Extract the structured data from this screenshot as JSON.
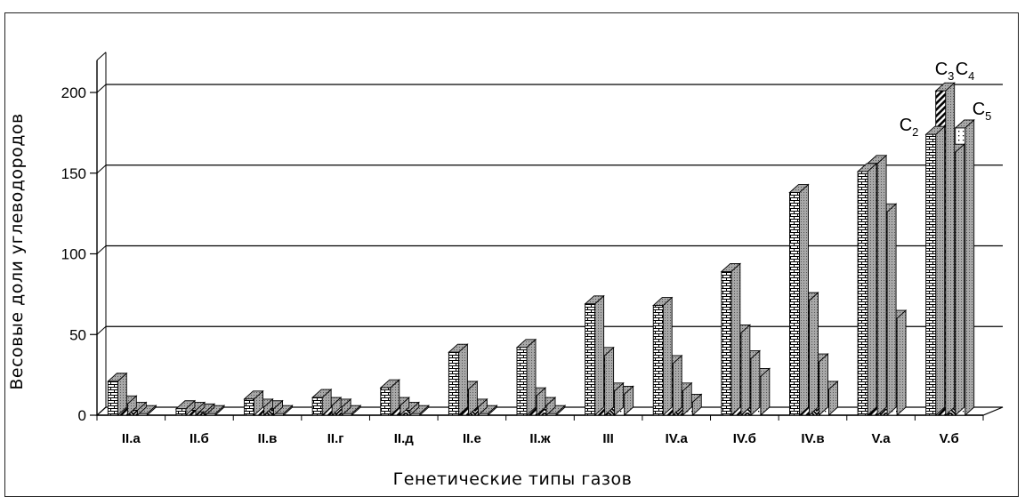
{
  "chart_data": {
    "type": "bar",
    "title": "",
    "xlabel": "Генетические типы газов",
    "ylabel": "Весовые доли углеводородов",
    "ylim": [
      0,
      200
    ],
    "yticks": [
      0,
      50,
      100,
      150,
      200
    ],
    "grid": true,
    "style": "3d-clustered-column",
    "categories": [
      "II.а",
      "II.б",
      "II.в",
      "II.г",
      "II.д",
      "II.е",
      "II.ж",
      "III",
      "IV.а",
      "IV.б",
      "IV.в",
      "V.а",
      "V.б"
    ],
    "series": [
      {
        "name": "C2",
        "label_main": "C",
        "label_sub": "2",
        "pattern": "bricks",
        "values": [
          21,
          4,
          10,
          11,
          17,
          39,
          42,
          69,
          68,
          89,
          138,
          151,
          174
        ]
      },
      {
        "name": "C3",
        "label_main": "C",
        "label_sub": "3",
        "pattern": "diag",
        "values": [
          7,
          3,
          5,
          6,
          6,
          16,
          12,
          37,
          32,
          51,
          71,
          156,
          201
        ]
      },
      {
        "name": "C4",
        "label_main": "C",
        "label_sub": "4",
        "pattern": "zigzag",
        "values": [
          3,
          2,
          4,
          5,
          3,
          5,
          6,
          15,
          15,
          35,
          33,
          126,
          163
        ]
      },
      {
        "name": "C5",
        "label_main": "C",
        "label_sub": "5",
        "pattern": "dots",
        "values": [
          1,
          1,
          1,
          1,
          1,
          1,
          1,
          13,
          8,
          24,
          16,
          60,
          178
        ]
      }
    ],
    "series_label_anchor_category": "V.б"
  }
}
